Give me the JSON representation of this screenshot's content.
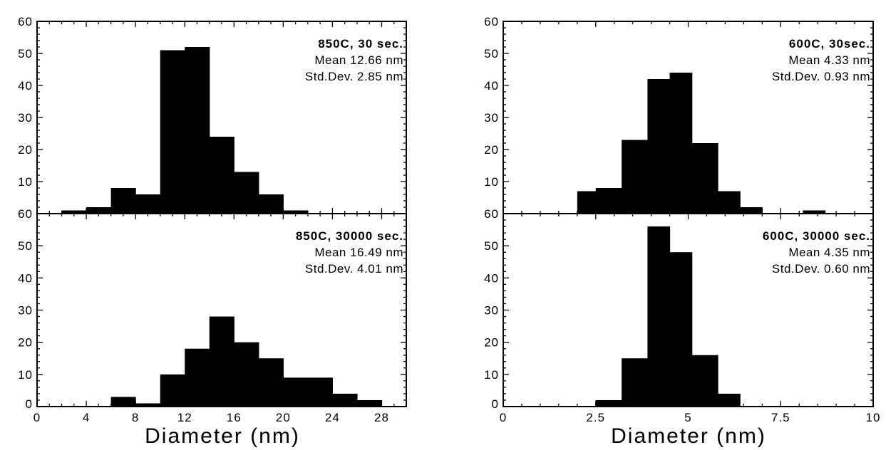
{
  "chart_data": [
    {
      "type": "bar",
      "panel": "top-left",
      "title": "850C, 30 sec.",
      "stats": [
        "Mean   12.66 nm",
        "Std.Dev. 2.85 nm"
      ],
      "bin_edges": [
        2,
        4,
        6,
        8,
        10,
        12,
        14,
        16,
        18,
        20,
        22
      ],
      "values": [
        1,
        2,
        8,
        6,
        51,
        52,
        24,
        13,
        6,
        1
      ],
      "ylim": [
        0,
        60
      ],
      "y_tick_labels": [
        "60",
        "50",
        "40",
        "30",
        "20",
        "10"
      ]
    },
    {
      "type": "bar",
      "panel": "bottom-left",
      "title": "850C, 30000 sec.",
      "stats": [
        "Mean    16.49 nm",
        "Std.Dev. 4.01 nm"
      ],
      "bin_edges": [
        6,
        8,
        10,
        12,
        14,
        16,
        18,
        20,
        22,
        24,
        26,
        28
      ],
      "values": [
        3,
        1,
        10,
        18,
        28,
        20,
        15,
        9,
        9,
        4,
        2
      ],
      "ylim": [
        0,
        60
      ],
      "y_tick_labels": [
        "60",
        "50",
        "40",
        "30",
        "20",
        "10",
        "0"
      ]
    },
    {
      "type": "bar",
      "panel": "top-right",
      "title": "600C, 30sec.",
      "stats": [
        "Mean     4.33 nm",
        "Std.Dev. 0.93 nm"
      ],
      "bin_edges": [
        2.0,
        2.5,
        3.2,
        3.9,
        4.5,
        5.1,
        5.8,
        6.4,
        7.0,
        8.1,
        8.7
      ],
      "values": [
        7,
        8,
        23,
        42,
        44,
        22,
        7,
        2,
        0,
        1
      ],
      "ylim": [
        0,
        60
      ],
      "y_tick_labels": [
        "60",
        "50",
        "40",
        "30",
        "20",
        "10"
      ]
    },
    {
      "type": "bar",
      "panel": "bottom-right",
      "title": "600C, 30000 sec.",
      "stats": [
        "Mean     4.35 nm",
        "Std.Dev. 0.60 nm"
      ],
      "bin_edges": [
        2.5,
        3.2,
        3.9,
        4.5,
        5.1,
        5.8,
        6.4
      ],
      "values": [
        2,
        15,
        56,
        48,
        16,
        4
      ],
      "ylim": [
        0,
        60
      ],
      "y_tick_labels": [
        "60",
        "50",
        "40",
        "30",
        "20",
        "10",
        "0"
      ]
    }
  ],
  "left_x_axis": {
    "xlim": [
      0,
      30
    ],
    "ticks": [
      0,
      4,
      8,
      12,
      16,
      20,
      24,
      28
    ],
    "tick_labels": [
      "0",
      "4",
      "8",
      "12",
      "16",
      "20",
      "24",
      "28"
    ],
    "xlabel": "Diameter (nm)"
  },
  "right_x_axis": {
    "xlim": [
      0,
      10
    ],
    "ticks": [
      0,
      2.5,
      5,
      7.5,
      10
    ],
    "tick_labels": [
      "0",
      "2.5",
      "5",
      "7.5",
      "10"
    ],
    "xlabel": "Diameter (nm)"
  }
}
